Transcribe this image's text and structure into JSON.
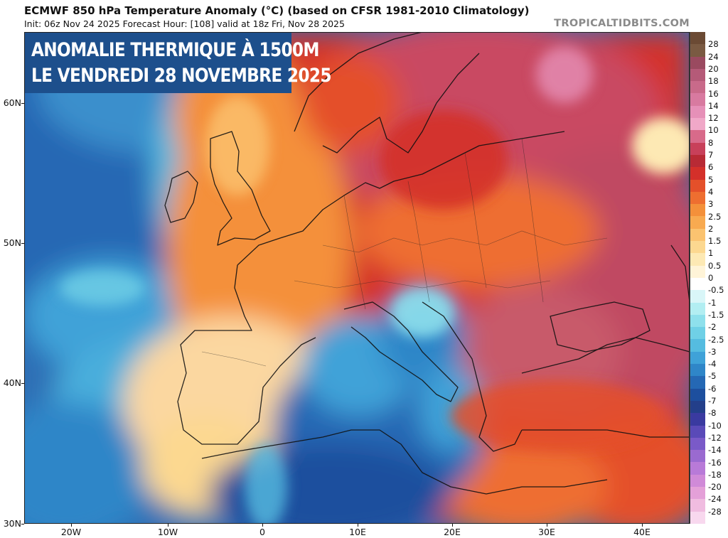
{
  "header": {
    "title": "ECMWF 850 hPa Temperature Anomaly (°C) (based on CFSR 1981-2010 Climatology)",
    "subtitle": "Init: 06z Nov 24 2025   Forecast Hour: [108]   valid at 18z Fri, Nov 28 2025",
    "brand": "TROPICALTIDBITS.COM"
  },
  "banner": {
    "line1": "ANOMALIE THERMIQUE À 1500M",
    "line2": "LE VENDREDI 28 NOVEMBRE 2025"
  },
  "axes": {
    "lat_labels": [
      "60N",
      "50N",
      "40N",
      "30N"
    ],
    "lon_labels": [
      "20W",
      "10W",
      "0",
      "10E",
      "20E",
      "30E",
      "40E"
    ]
  },
  "colorbar": {
    "labels": [
      "28",
      "24",
      "20",
      "18",
      "16",
      "14",
      "12",
      "10",
      "8",
      "7",
      "6",
      "5",
      "4",
      "3",
      "2.5",
      "2",
      "1.5",
      "1",
      "0.5",
      "0",
      "-0.5",
      "-1",
      "-1.5",
      "-2",
      "-2.5",
      "-3",
      "-4",
      "-5",
      "-6",
      "-7",
      "-8",
      "-10",
      "-12",
      "-14",
      "-16",
      "-18",
      "-20",
      "-24",
      "-28"
    ],
    "colors": [
      "#7a5a42",
      "#9a4a60",
      "#b55a78",
      "#c96a8a",
      "#d87aa0",
      "#e690b8",
      "#f0a8c8",
      "#d86a8a",
      "#c8405a",
      "#b82a35",
      "#d4302a",
      "#e4502a",
      "#ee6e30",
      "#f4903a",
      "#f8aa50",
      "#fbc370",
      "#fcd890",
      "#fde9b4",
      "#fff4d8",
      "#ffffff",
      "#d9f6f8",
      "#b2eef2",
      "#8ee0ec",
      "#6fd0e6",
      "#55bce0",
      "#3fa2d8",
      "#2f86c8",
      "#2568b4",
      "#1d4f9e",
      "#233f8a",
      "#3a3aa0",
      "#5a4ab8",
      "#7a5ac8",
      "#9a6ad0",
      "#b87ad8",
      "#d08ad8",
      "#e4a0d8",
      "#f0bce0",
      "#f8d8ee"
    ]
  }
}
